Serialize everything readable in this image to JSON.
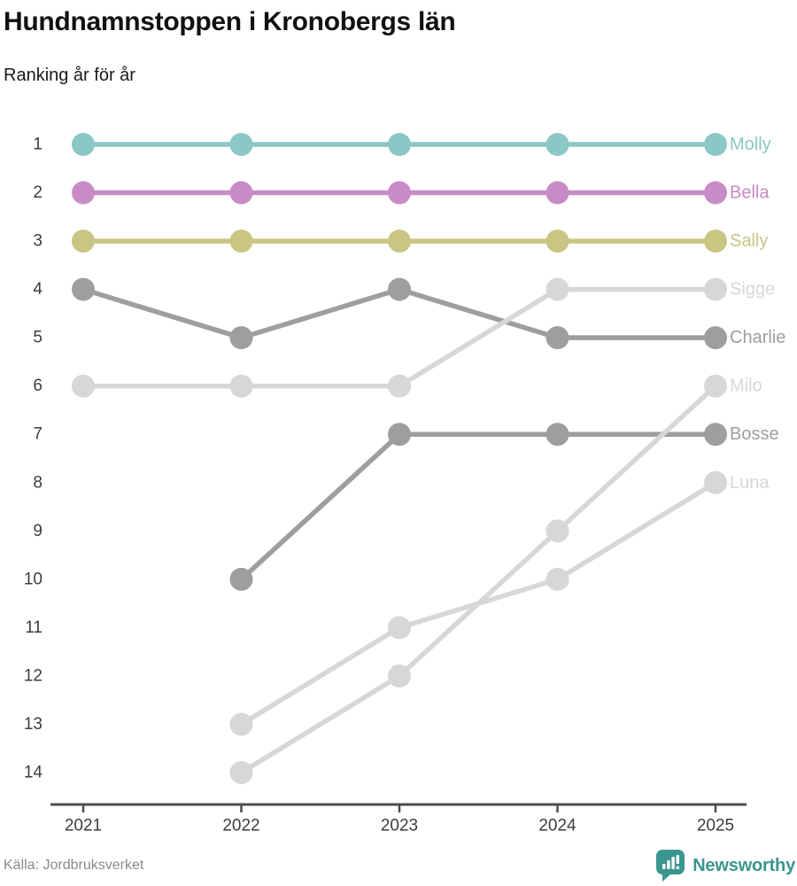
{
  "header": {
    "title": "Hundnamnstoppen i Kronobergs län",
    "subtitle": "Ranking år för år"
  },
  "footer": {
    "source": "Källa: Jordbruksverket",
    "brand": "Newsworthy",
    "brand_color": "#3a968e"
  },
  "chart_data": {
    "type": "line",
    "variant": "bump-ranking",
    "title": "Hundnamnstoppen i Kronobergs län",
    "subtitle": "Ranking år för år",
    "x": [
      2021,
      2022,
      2023,
      2024,
      2025
    ],
    "xlabel": "",
    "ylabel": "",
    "y_axis": {
      "min": 1,
      "max": 14,
      "inverted": true,
      "tick_step": 1
    },
    "grid": false,
    "legend_position": "right-end-labels",
    "axis_color": "#4d4d4d",
    "axis_text_color": "#3d3d3d",
    "series": [
      {
        "name": "Molly",
        "color": "#8bc7c5",
        "values": [
          1,
          1,
          1,
          1,
          1
        ]
      },
      {
        "name": "Bella",
        "color": "#c98bc7",
        "values": [
          2,
          2,
          2,
          2,
          2
        ]
      },
      {
        "name": "Sally",
        "color": "#c9c583",
        "values": [
          3,
          3,
          3,
          3,
          3
        ]
      },
      {
        "name": "Sigge",
        "color": "#d7d7d7",
        "values": [
          6,
          6,
          6,
          4,
          4
        ]
      },
      {
        "name": "Charlie",
        "color": "#9e9e9e",
        "values": [
          4,
          5,
          4,
          5,
          5
        ]
      },
      {
        "name": "Milo",
        "color": "#d7d7d7",
        "values": [
          null,
          14,
          12,
          9,
          6
        ]
      },
      {
        "name": "Bosse",
        "color": "#9e9e9e",
        "values": [
          null,
          10,
          7,
          7,
          7
        ]
      },
      {
        "name": "Luna",
        "color": "#d7d7d7",
        "values": [
          null,
          13,
          11,
          10,
          8
        ]
      }
    ],
    "draw_order": [
      "Molly",
      "Bella",
      "Sally",
      "Charlie",
      "Bosse",
      "Sigge",
      "Milo",
      "Luna"
    ]
  }
}
